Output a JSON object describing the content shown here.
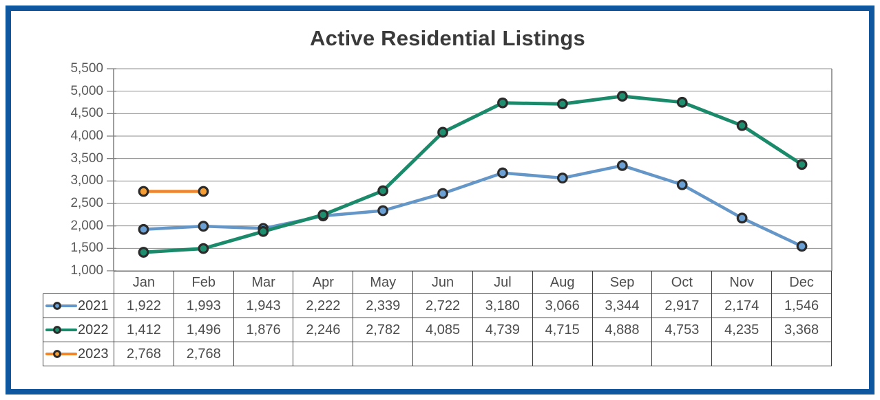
{
  "chart_data": {
    "type": "line",
    "title": "Active Residential Listings",
    "categories": [
      "Jan",
      "Feb",
      "Mar",
      "Apr",
      "May",
      "Jun",
      "Jul",
      "Aug",
      "Sep",
      "Oct",
      "Nov",
      "Dec"
    ],
    "series": [
      {
        "name": "2021",
        "color": "#6596C8",
        "marker_fill": "#6BA0D4",
        "values": [
          1922,
          1993,
          1943,
          2222,
          2339,
          2722,
          3180,
          3066,
          3344,
          2917,
          2174,
          1546
        ]
      },
      {
        "name": "2022",
        "color": "#1B8A6B",
        "marker_fill": "#1F8E6E",
        "values": [
          1412,
          1496,
          1876,
          2246,
          2782,
          4085,
          4739,
          4715,
          4888,
          4753,
          4235,
          3368
        ]
      },
      {
        "name": "2023",
        "color": "#F0862B",
        "marker_fill": "#F59E35",
        "values": [
          2768,
          2768,
          null,
          null,
          null,
          null,
          null,
          null,
          null,
          null,
          null,
          null
        ]
      }
    ],
    "ylim": [
      1000,
      5500
    ],
    "ytick_step": 500,
    "ytick_labels": [
      "1,000",
      "1,500",
      "2,000",
      "2,500",
      "3,000",
      "3,500",
      "4,000",
      "4,500",
      "5,000",
      "5,500"
    ],
    "grid": true,
    "legend_position": "table-left",
    "marker_outline": "#2B2B2B"
  },
  "style": {
    "frame_border_color": "#0F579F",
    "grid_color": "#8C8C8C",
    "axis_color": "#7F7F7F",
    "ytick_label_color": "#595959",
    "table_border_color": "#404040",
    "table_text_color": "#4D4D4D",
    "title_color": "#3A3A3A"
  }
}
